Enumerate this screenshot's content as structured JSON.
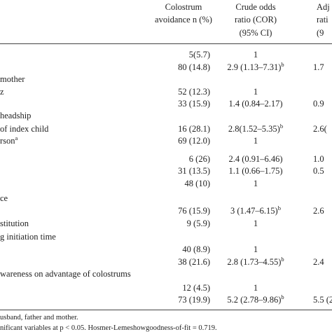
{
  "header": {
    "avoidance": [
      "Colostrum",
      "avoidance n (%)"
    ],
    "cor": [
      "Crude odds",
      "ratio (COR)",
      "(95% CI)"
    ],
    "adj": [
      "Adj",
      "rati",
      "(9"
    ]
  },
  "rows": [
    {
      "avoidance": "5(5.7)",
      "cor": "1"
    },
    {
      "avoidance": "80 (14.8)",
      "cor": "2.9 (1.13–7.31)",
      "cor_note": "b",
      "adj": "1.7"
    },
    {
      "label": "mother"
    },
    {
      "label": "z",
      "avoidance": "52 (12.3)",
      "cor": "1"
    },
    {
      "avoidance": "33 (15.9)",
      "cor": "1.4 (0.84–2.17)",
      "adj": "0.9"
    },
    {
      "label": "headship"
    },
    {
      "label": "of index child",
      "avoidance": "16 (28.1)",
      "cor": "2.8(1.52–5.35)",
      "cor_note": "b",
      "adj": "2.6("
    },
    {
      "label": "rson",
      "label_note": "a",
      "avoidance": "69 (12.0)",
      "cor": "1"
    },
    {
      "avoidance": "6 (26)",
      "cor": "2.4 (0.91–6.46)",
      "adj": "1.0"
    },
    {
      "avoidance": "31 (13.5)",
      "cor": "1.1 (0.66–1.75)",
      "adj": "0.5"
    },
    {
      "avoidance": "48 (10)",
      "cor": "1"
    },
    {
      "label": "ce"
    },
    {
      "avoidance": "76 (15.9)",
      "cor": "3 (1.47–6.15)",
      "cor_note": "b",
      "adj": "2.6"
    },
    {
      "label": "stitution",
      "avoidance": "9 (5.9)",
      "cor": "1"
    },
    {
      "label": "g initiation time"
    },
    {
      "avoidance": "40 (8.9)",
      "cor": "1"
    },
    {
      "avoidance": "38 (21.6)",
      "cor": "2.8 (1.73–4.55)",
      "cor_note": "b",
      "adj": "2.4"
    },
    {
      "label": "wareness on advantage of colostrums"
    },
    {
      "avoidance": "12 (4.5)",
      "cor": "1"
    },
    {
      "avoidance": "73 (19.9)",
      "cor": "5.2 (2.78–9.86)",
      "cor_note": "b",
      "adj": "5.5 (2"
    }
  ],
  "footnotes": [
    "usband, father and mother.",
    "nificant variables at p < 0.05. Hosmer-Lemeshowgoodness-of-fit = 0.719."
  ]
}
